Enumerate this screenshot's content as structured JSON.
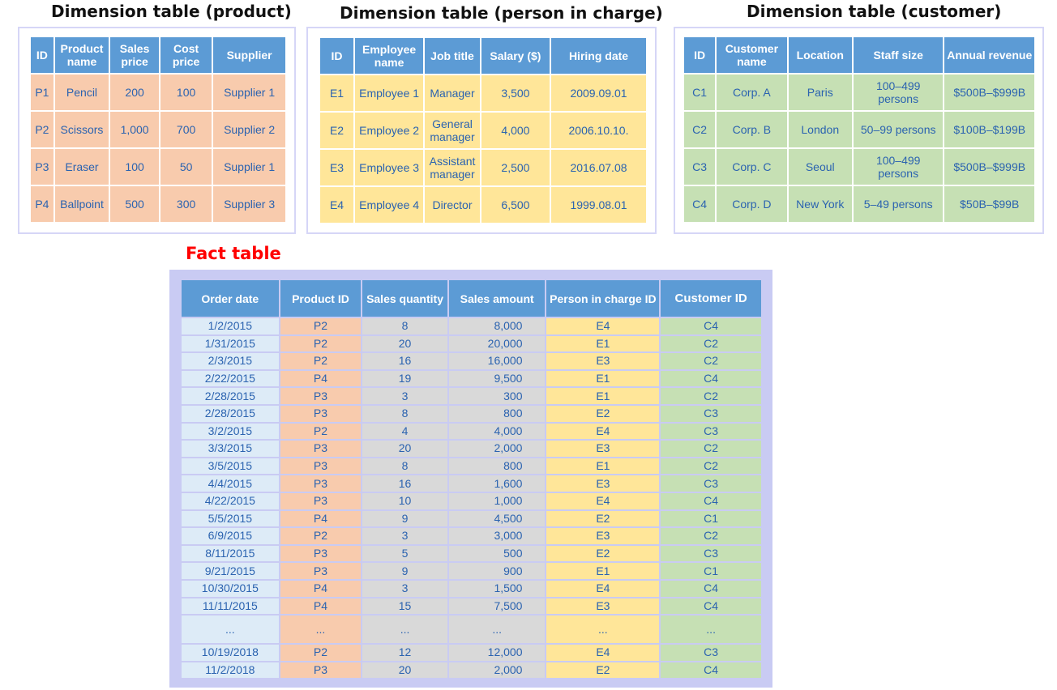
{
  "product_table": {
    "title": "Dimension table (product)",
    "headers": [
      "ID",
      "Product name",
      "Sales price",
      "Cost price",
      "Supplier"
    ],
    "rows": [
      [
        "P1",
        "Pencil",
        "200",
        "100",
        "Supplier 1"
      ],
      [
        "P2",
        "Scissors",
        "1,000",
        "700",
        "Supplier 2"
      ],
      [
        "P3",
        "Eraser",
        "100",
        "50",
        "Supplier 1"
      ],
      [
        "P4",
        "Ballpoint",
        "500",
        "300",
        "Supplier 3"
      ]
    ]
  },
  "person_table": {
    "title": "Dimension table (person in charge)",
    "headers": [
      "ID",
      "Employee name",
      "Job title",
      "Salary ($)",
      "Hiring date"
    ],
    "rows": [
      [
        "E1",
        "Employee 1",
        "Manager",
        "3,500",
        "2009.09.01"
      ],
      [
        "E2",
        "Employee 2",
        "General manager",
        "4,000",
        "2006.10.10."
      ],
      [
        "E3",
        "Employee 3",
        "Assistant manager",
        "2,500",
        "2016.07.08"
      ],
      [
        "E4",
        "Employee 4",
        "Director",
        "6,500",
        "1999.08.01"
      ]
    ]
  },
  "customer_table": {
    "title": "Dimension table (customer)",
    "headers": [
      "ID",
      "Customer name",
      "Location",
      "Staff size",
      "Annual revenue"
    ],
    "rows": [
      [
        "C1",
        "Corp. A",
        "Paris",
        "100–499 persons",
        "$500B–$999B"
      ],
      [
        "C2",
        "Corp. B",
        "London",
        "50–99 persons",
        "$100B–$199B"
      ],
      [
        "C3",
        "Corp. C",
        "Seoul",
        "100–499 persons",
        "$500B–$999B"
      ],
      [
        "C4",
        "Corp. D",
        "New York",
        "5–49 persons",
        "$50B–$99B"
      ]
    ]
  },
  "fact_table": {
    "title": "Fact table",
    "headers": [
      "Order date",
      "Product ID",
      "Sales quantity",
      "Sales amount",
      "Person in charge ID",
      "Customer ID"
    ],
    "rows": [
      [
        "1/2/2015",
        "P2",
        "8",
        "8,000",
        "E4",
        "C4"
      ],
      [
        "1/31/2015",
        "P2",
        "20",
        "20,000",
        "E1",
        "C2"
      ],
      [
        "2/3/2015",
        "P2",
        "16",
        "16,000",
        "E3",
        "C2"
      ],
      [
        "2/22/2015",
        "P4",
        "19",
        "9,500",
        "E1",
        "C4"
      ],
      [
        "2/28/2015",
        "P3",
        "3",
        "300",
        "E1",
        "C2"
      ],
      [
        "2/28/2015",
        "P3",
        "8",
        "800",
        "E2",
        "C3"
      ],
      [
        "3/2/2015",
        "P2",
        "4",
        "4,000",
        "E4",
        "C3"
      ],
      [
        "3/3/2015",
        "P3",
        "20",
        "2,000",
        "E3",
        "C2"
      ],
      [
        "3/5/2015",
        "P3",
        "8",
        "800",
        "E1",
        "C2"
      ],
      [
        "4/4/2015",
        "P3",
        "16",
        "1,600",
        "E3",
        "C3"
      ],
      [
        "4/22/2015",
        "P3",
        "10",
        "1,000",
        "E4",
        "C4"
      ],
      [
        "5/5/2015",
        "P4",
        "9",
        "4,500",
        "E2",
        "C1"
      ],
      [
        "6/9/2015",
        "P2",
        "3",
        "3,000",
        "E3",
        "C2"
      ],
      [
        "8/11/2015",
        "P3",
        "5",
        "500",
        "E2",
        "C3"
      ],
      [
        "9/21/2015",
        "P3",
        "9",
        "900",
        "E1",
        "C1"
      ],
      [
        "10/30/2015",
        "P4",
        "3",
        "1,500",
        "E4",
        "C4"
      ],
      [
        "11/11/2015",
        "P4",
        "15",
        "7,500",
        "E3",
        "C4"
      ],
      [
        "...",
        "...",
        "...",
        "...",
        "...",
        "..."
      ],
      [
        "10/19/2018",
        "P2",
        "12",
        "12,000",
        "E4",
        "C3"
      ],
      [
        "11/2/2018",
        "P3",
        "20",
        "2,000",
        "E2",
        "C4"
      ]
    ]
  },
  "colors": {
    "header": "#5c9bd5",
    "product": "#f8cbad",
    "person": "#ffe699",
    "customer": "#c6e0b4",
    "order_date": "#ddebf7",
    "measures": "#d9d9d9",
    "fact_title": "#ff0000"
  }
}
